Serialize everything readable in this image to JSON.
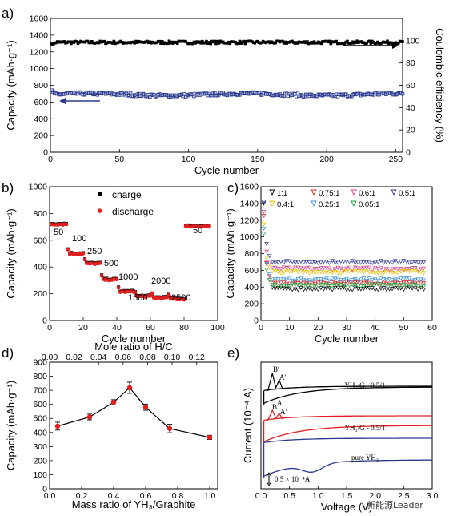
{
  "panels": {
    "a": "a)",
    "b": "b)",
    "c": "c)",
    "d": "d)",
    "e": "e)"
  },
  "watermark": "新能源Leader",
  "chart_data": [
    {
      "id": "a",
      "type": "scatter",
      "xlabel": "Cycle number",
      "ylabel": "Capacity (mAh·g⁻¹)",
      "ylabel_right": "Coulombic efficiency (%)",
      "xlim": [
        0,
        255
      ],
      "ylim": [
        0,
        1600
      ],
      "ylim_right": [
        0,
        120
      ],
      "xticks": [
        0,
        50,
        100,
        150,
        200,
        250
      ],
      "yticks": [
        0,
        200,
        400,
        600,
        800,
        1000,
        1200,
        1400,
        1600
      ],
      "yticks_right": [
        0,
        20,
        40,
        60,
        80,
        100
      ],
      "series": [
        {
          "color": "#000000",
          "axis": "right",
          "x_range": [
            1,
            255
          ],
          "mean": 98.5,
          "jitter": 1.2,
          "start": 96
        },
        {
          "color": "#2b3a8f",
          "axis": "left",
          "x_range": [
            1,
            255
          ],
          "mean": 690,
          "jitter": 18,
          "start": 760
        }
      ],
      "arrows": [
        "right",
        "left"
      ]
    },
    {
      "id": "b",
      "type": "scatter",
      "xlabel": "Cycle number",
      "ylabel": "Capacity (mAh·g⁻¹)",
      "xlim": [
        0,
        100
      ],
      "ylim": [
        0,
        1000
      ],
      "xticks": [
        0,
        20,
        40,
        60,
        80,
        100
      ],
      "yticks": [
        0,
        200,
        400,
        600,
        800,
        1000
      ],
      "legend": [
        "charge",
        "discharge"
      ],
      "segments": [
        {
          "label": "50",
          "x_start": 1,
          "x_end": 10,
          "value": 720
        },
        {
          "label": "100",
          "x_start": 11,
          "x_end": 20,
          "value": 500
        },
        {
          "label": "250",
          "x_start": 21,
          "x_end": 30,
          "value": 425
        },
        {
          "label": "500",
          "x_start": 31,
          "x_end": 40,
          "value": 305
        },
        {
          "label": "1000",
          "x_start": 41,
          "x_end": 50,
          "value": 215
        },
        {
          "label": "1500",
          "x_start": 51,
          "x_end": 60,
          "value": 180
        },
        {
          "label": "2000",
          "x_start": 61,
          "x_end": 70,
          "value": 170
        },
        {
          "label": "2500",
          "x_start": 71,
          "x_end": 80,
          "value": 160
        },
        {
          "label": "50",
          "x_start": 81,
          "x_end": 95,
          "value": 705
        }
      ]
    },
    {
      "id": "c",
      "type": "scatter",
      "xlabel": "Cycle number",
      "ylabel": "Capacity (mAh·g⁻¹)",
      "xlim": [
        0,
        60
      ],
      "ylim": [
        0,
        1600
      ],
      "xticks": [
        0,
        10,
        20,
        30,
        40,
        50,
        60
      ],
      "yticks": [
        0,
        200,
        400,
        600,
        800,
        1000,
        1200,
        1400,
        1600
      ],
      "series": [
        {
          "name": "1:1",
          "color": "#000000",
          "value": 380,
          "first": 1400
        },
        {
          "name": "0.75:1",
          "color": "#e02020",
          "value": 450,
          "first": 1250
        },
        {
          "name": "0.6:1",
          "color": "#d43a8a",
          "value": 620,
          "first": 1300
        },
        {
          "name": "0.5:1",
          "color": "#2b3a8f",
          "value": 700,
          "first": 1420
        },
        {
          "name": "0.4:1",
          "color": "#e6c200",
          "value": 580,
          "first": 1150
        },
        {
          "name": "0.25:1",
          "color": "#3a8fd4",
          "value": 490,
          "first": 1100
        },
        {
          "name": "0.05:1",
          "color": "#1ea03c",
          "value": 420,
          "first": 1040
        }
      ]
    },
    {
      "id": "d",
      "type": "line",
      "xlabel": "Mass ratio of YH₃/Graphite",
      "xlabel_top": "Mole ratio of  H/C",
      "ylabel": "Capacity (mAh·g⁻¹)",
      "xlim": [
        0.0,
        1.05
      ],
      "ylim": [
        0,
        900
      ],
      "xticks": [
        0.0,
        0.2,
        0.4,
        0.6,
        0.8,
        1.0
      ],
      "xticks_top": [
        0.0,
        0.02,
        0.04,
        0.06,
        0.08,
        0.1,
        0.12
      ],
      "yticks": [
        0,
        100,
        200,
        300,
        400,
        500,
        600,
        700,
        800,
        900
      ],
      "x": [
        0.05,
        0.25,
        0.4,
        0.5,
        0.6,
        0.75,
        1.0
      ],
      "y": [
        445,
        510,
        615,
        718,
        580,
        428,
        365
      ],
      "err": [
        28,
        20,
        18,
        40,
        22,
        30,
        15
      ]
    },
    {
      "id": "e",
      "type": "line",
      "xlabel": "Voltage (V)",
      "ylabel": "Current (10⁻⁴ A)",
      "xlim": [
        0.0,
        3.0
      ],
      "xticks": [
        0.0,
        0.5,
        1.0,
        1.5,
        2.0,
        2.5,
        3.0
      ],
      "scale_label": "0.5 × 10⁻⁴A",
      "series": [
        {
          "name": "YH₃/G - 0.5/1",
          "color": "#000000"
        },
        {
          "name": "YH₃/G - 0.5/1",
          "color": "#e02020"
        },
        {
          "name": "pure YH₃",
          "color": "#2b3a8f"
        }
      ],
      "peak_labels": [
        "B'",
        "A'",
        "B",
        "A",
        "A'"
      ]
    }
  ]
}
